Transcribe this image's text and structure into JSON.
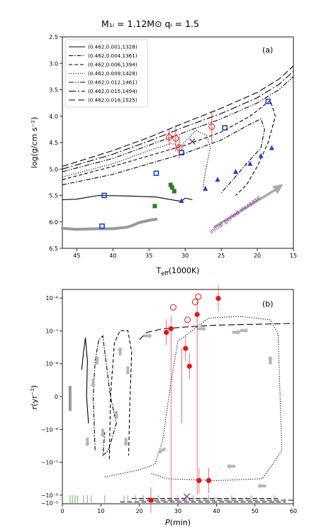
{
  "figure_title": "M₁ᵢ = 1.12M⊙ qᵢ = 1.5",
  "colors": {
    "blue": "#1f3fd6",
    "red": "#e8141a",
    "green": "#2a7d1d",
    "purple": "#7b2a9a",
    "grey": "#999999"
  },
  "chart_data": [
    {
      "panel": "(a)",
      "type": "line",
      "xlabel": "T_eff(1000K)",
      "ylabel": "log(g/cm s⁻²)",
      "xlim": [
        47,
        15
      ],
      "ylim": [
        6.5,
        2.5
      ],
      "x_ticks": [
        "45",
        "40",
        "35",
        "30",
        "25",
        "20",
        "15"
      ],
      "y_ticks": [
        "2.5",
        "3.0",
        "3.5",
        "4.0",
        "4.5",
        "5.0",
        "5.5",
        "6.0",
        "6.5"
      ],
      "legend_position": "top-left",
      "series": [
        {
          "name": "(0.462,0.001,1328)",
          "dash": "solid",
          "x": [
            47,
            45,
            42,
            38,
            34,
            31.5,
            30.5,
            30,
            29
          ],
          "y": [
            5.58,
            5.57,
            5.5,
            5.51,
            5.53,
            5.59,
            5.61,
            5.55,
            5.58
          ]
        },
        {
          "name": "(0.462,0.004,1361)",
          "dash": "dashdot",
          "x": [
            47,
            40,
            35,
            30,
            25,
            21,
            19.5,
            19,
            19.5,
            21.5,
            24,
            25
          ],
          "y": [
            5.3,
            5.1,
            4.9,
            4.7,
            4.45,
            4.15,
            4.05,
            4.25,
            4.6,
            4.9,
            5.3,
            5.45
          ]
        },
        {
          "name": "(0.462,0.006,1394)",
          "dash": "dashed",
          "x": [
            47,
            40,
            35,
            30,
            25,
            21,
            18.2,
            17.5,
            18.5,
            20,
            21.5,
            23
          ],
          "y": [
            5.2,
            4.95,
            4.75,
            4.55,
            4.3,
            4.0,
            3.7,
            4.0,
            4.5,
            4.95,
            5.3,
            5.5
          ]
        },
        {
          "name": "(0.462,0.009,1428)",
          "dash": "dotted",
          "x": [
            47,
            40,
            35,
            32,
            30.5,
            28.5,
            27,
            26.5,
            27.2,
            27.5
          ],
          "y": [
            5.15,
            4.9,
            4.65,
            4.52,
            4.55,
            4.27,
            4.37,
            4.6,
            5.05,
            5.35
          ]
        },
        {
          "name": "(0.462,0.012,1461)",
          "dash": "dashdotted",
          "x": [
            47,
            40,
            35,
            30,
            25,
            20,
            17,
            15
          ],
          "y": [
            5.05,
            4.8,
            4.55,
            4.3,
            4.05,
            3.75,
            3.5,
            3.25
          ]
        },
        {
          "name": "(0.462,0.015,1494)",
          "dash": "longdashdot",
          "x": [
            47,
            40,
            35,
            30,
            25,
            20,
            17,
            15
          ],
          "y": [
            5.0,
            4.72,
            4.47,
            4.2,
            3.95,
            3.65,
            3.4,
            3.15
          ]
        },
        {
          "name": "(0.462,0.018,1525)",
          "dash": "longdash",
          "x": [
            47,
            40,
            35,
            30,
            25,
            20,
            17,
            15
          ],
          "y": [
            4.95,
            4.65,
            4.4,
            4.12,
            3.85,
            3.55,
            3.3,
            3.05
          ]
        }
      ],
      "grey_track": {
        "x": [
          47,
          45,
          42,
          40,
          38,
          37,
          36.5,
          35,
          34
        ],
        "y": [
          6.12,
          6.14,
          6.13,
          6.13,
          6.1,
          6.05,
          6.02,
          5.97,
          5.95
        ]
      },
      "blue_squares": {
        "x": [
          41.2,
          34,
          30.5,
          24.5,
          18.5,
          41.5
        ],
        "y": [
          5.5,
          5.08,
          4.69,
          4.22,
          3.72,
          6.08
        ]
      },
      "blue_triangles": {
        "x": [
          30.5,
          27.2,
          25.5,
          23,
          21,
          19.5,
          18
        ],
        "y": [
          5.6,
          5.37,
          5.2,
          5.05,
          4.9,
          4.75,
          4.6
        ]
      },
      "green_squares": {
        "x": [
          32,
          31.8,
          31.5,
          34.2
        ],
        "y": [
          5.3,
          5.35,
          5.42,
          5.7
        ]
      },
      "red_open_circles": {
        "x": [
          32.2,
          31.3,
          30.8,
          26.3
        ],
        "y": [
          4.4,
          4.42,
          4.6,
          4.2
        ],
        "err": [
          0.15,
          0.25,
          0.2,
          0.3
        ]
      },
      "purple_cross": {
        "x": [
          29
        ],
        "y": [
          4.48
        ]
      },
      "annotation": "initial period increase",
      "arrow_tail": [
        26,
        6.1
      ],
      "arrow_head": [
        17,
        5.35
      ]
    },
    {
      "panel": "(b)",
      "type": "line",
      "xlabel": "P(min)",
      "ylabel": "r(yr⁻¹)",
      "xlim": [
        0,
        60
      ],
      "ylim": [
        -6,
        6
      ],
      "x_ticks": [
        "0",
        "10",
        "20",
        "30",
        "40",
        "50",
        "60"
      ],
      "y_ticks": [
        "10⁻⁶",
        "10⁻⁷",
        "10⁻⁸",
        "0",
        "−10⁻⁸",
        "−10⁻⁷",
        "−10⁻⁶",
        "−10⁻⁵"
      ],
      "series": [
        {
          "name": "solid",
          "dash": "solid",
          "x": [
            5,
            5.5,
            6,
            6.5,
            6.3,
            6.8
          ],
          "y": [
            1.5,
            2.5,
            3.3,
            2,
            0,
            -1.5
          ]
        },
        {
          "name": "dashdot",
          "dash": "dashdot",
          "x": [
            8.5,
            8,
            8.5,
            9.5,
            10.5,
            11,
            12.5,
            14,
            12,
            10.5,
            11
          ],
          "y": [
            -3,
            0,
            2,
            3.2,
            3.4,
            2.5,
            0,
            -1.5,
            -3,
            -3.3,
            -2
          ]
        },
        {
          "name": "dashed",
          "dash": "dashed",
          "x": [
            12.2,
            12.5,
            13.5,
            15,
            17,
            18,
            17.5,
            17.2
          ],
          "y": [
            -3.5,
            0,
            3,
            3.7,
            3.7,
            2.5,
            -0.5,
            -3.3
          ]
        },
        {
          "name": "dotted",
          "dash": "dotted",
          "x": [
            11,
            20,
            24,
            26,
            28,
            30,
            38,
            46,
            54,
            56,
            57,
            52,
            40,
            27,
            23
          ],
          "y": [
            -4.5,
            -4.1,
            -3.8,
            -2.5,
            0.5,
            3.1,
            4.4,
            4.5,
            4.3,
            3.5,
            -3,
            -4.6,
            -4.7,
            -4.6,
            -4.3
          ]
        },
        {
          "name": "longdash",
          "dash": "longdash",
          "x": [
            20,
            22,
            26,
            32,
            40,
            50,
            60
          ],
          "y": [
            3.2,
            3.6,
            3.8,
            3.9,
            4.0,
            4.05,
            4.1
          ]
        }
      ],
      "red_filled": {
        "x": [
          23,
          27,
          28.2,
          32,
          33,
          35,
          35.5,
          38,
          40.5
        ],
        "y": [
          -5.8,
          3.6,
          3.8,
          2.7,
          1.7,
          4.6,
          -4.7,
          -4.7,
          5.5
        ]
      },
      "red_open": {
        "x": [
          28.8,
          32.5,
          34.5,
          35.3
        ],
        "y": [
          5,
          4.3,
          5.3,
          5.6
        ]
      },
      "purple_cross": {
        "x": [
          32.3
        ],
        "y": [
          -5.6
        ]
      }
    }
  ],
  "panel_b_tag": "(b)",
  "panel_a_tag": "(a)"
}
